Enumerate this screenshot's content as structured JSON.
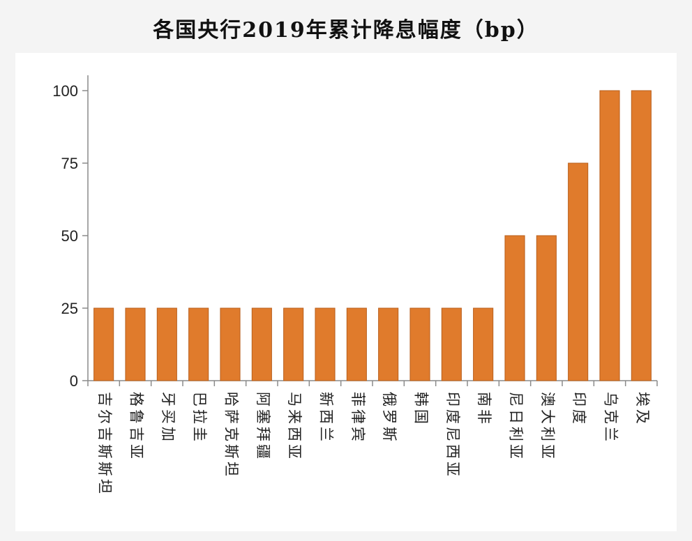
{
  "chart_data": {
    "type": "bar",
    "title": "各国央行2019年累计降息幅度（bp）",
    "xlabel": "",
    "ylabel": "",
    "categories": [
      "吉尔吉斯斯坦",
      "格鲁吉亚",
      "牙买加",
      "巴拉圭",
      "哈萨克斯坦",
      "阿塞拜疆",
      "马来西亚",
      "新西兰",
      "菲律宾",
      "俄罗斯",
      "韩国",
      "印度尼西亚",
      "南非",
      "尼日利亚",
      "澳大利亚",
      "印度",
      "乌克兰",
      "埃及"
    ],
    "values": [
      25,
      25,
      25,
      25,
      25,
      25,
      25,
      25,
      25,
      25,
      25,
      25,
      25,
      50,
      50,
      75,
      100,
      100
    ],
    "ylim": [
      0,
      100
    ],
    "yticks": [
      "0",
      "25",
      "50",
      "75",
      "100"
    ],
    "grid": false,
    "legend": "none",
    "bar_color": "#e07b2c",
    "bar_edge_color": "#b85f1c",
    "axis_color": "#8a8a8a"
  }
}
